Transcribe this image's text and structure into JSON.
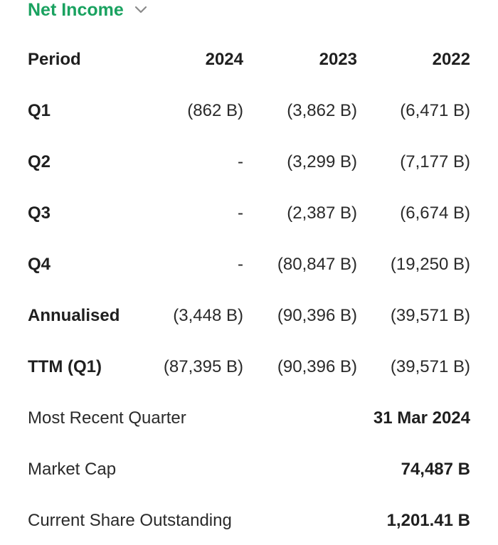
{
  "header": {
    "title": "Net Income",
    "chevron_icon": "chevron-down-icon",
    "accent_color": "#1aa260"
  },
  "table": {
    "columns": [
      "Period",
      "2024",
      "2023",
      "2022"
    ],
    "rows": [
      {
        "label": "Q1",
        "values": [
          "(862 B)",
          "(3,862 B)",
          "(6,471 B)"
        ]
      },
      {
        "label": "Q2",
        "values": [
          "-",
          "(3,299 B)",
          "(7,177 B)"
        ]
      },
      {
        "label": "Q3",
        "values": [
          "-",
          "(2,387 B)",
          "(6,674 B)"
        ]
      },
      {
        "label": "Q4",
        "values": [
          "-",
          "(80,847 B)",
          "(19,250 B)"
        ]
      },
      {
        "label": "Annualised",
        "values": [
          "(3,448 B)",
          "(90,396 B)",
          "(39,571 B)"
        ]
      },
      {
        "label": "TTM (Q1)",
        "values": [
          "(87,395 B)",
          "(90,396 B)",
          "(39,571 B)"
        ]
      }
    ]
  },
  "info": [
    {
      "label": "Most Recent Quarter",
      "value": "31 Mar 2024"
    },
    {
      "label": "Market Cap",
      "value": "74,487 B"
    },
    {
      "label": "Current Share Outstanding",
      "value": "1,201.41 B"
    }
  ]
}
